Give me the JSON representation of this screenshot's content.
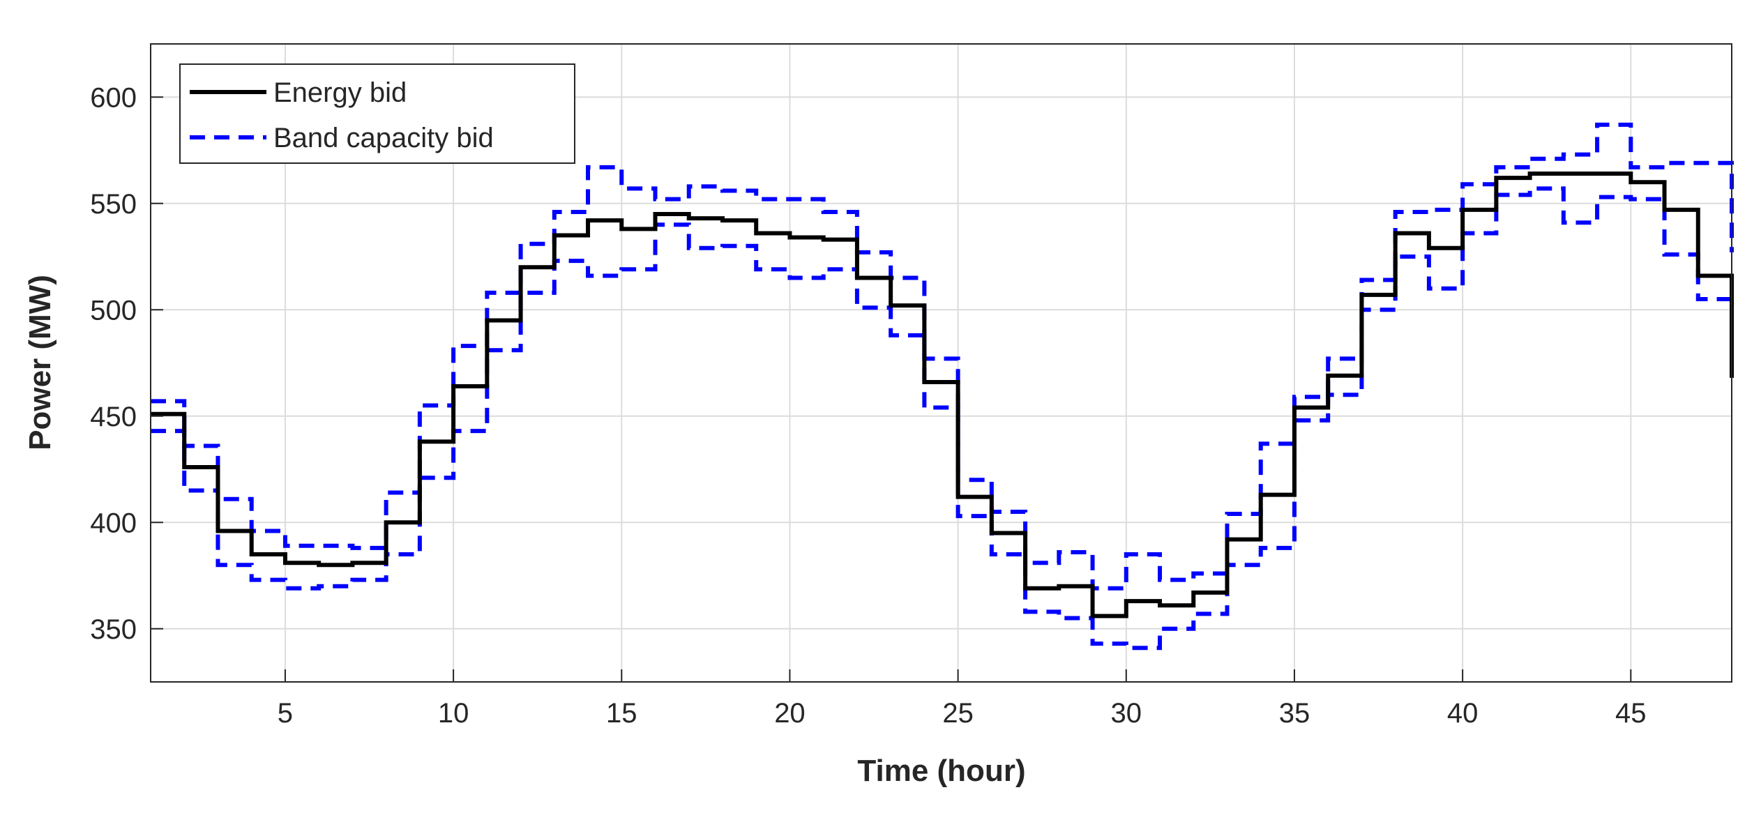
{
  "chart_data": {
    "type": "line",
    "style": "stairs",
    "xlabel": "Time (hour)",
    "ylabel": "Power (MW)",
    "xlim": [
      1,
      48
    ],
    "ylim": [
      325,
      625
    ],
    "xticks": [
      5,
      10,
      15,
      20,
      25,
      30,
      35,
      40,
      45
    ],
    "yticks": [
      350,
      400,
      450,
      500,
      550,
      600
    ],
    "grid": true,
    "legend_position": "top-left",
    "x": [
      1,
      2,
      3,
      4,
      5,
      6,
      7,
      8,
      9,
      10,
      11,
      12,
      13,
      14,
      15,
      16,
      17,
      18,
      19,
      20,
      21,
      22,
      23,
      24,
      25,
      26,
      27,
      28,
      29,
      30,
      31,
      32,
      33,
      34,
      35,
      36,
      37,
      38,
      39,
      40,
      41,
      42,
      43,
      44,
      45,
      46,
      47,
      48
    ],
    "series": [
      {
        "name": "Energy bid",
        "color": "#000000",
        "line_style": "solid",
        "values": [
          451,
          426,
          396,
          385,
          381,
          380,
          381,
          400,
          438,
          464,
          495,
          520,
          535,
          542,
          538,
          545,
          543,
          542,
          536,
          534,
          533,
          515,
          502,
          466,
          412,
          395,
          369,
          370,
          356,
          363,
          361,
          367,
          392,
          413,
          454,
          469,
          507,
          536,
          529,
          547,
          562,
          564,
          564,
          564,
          560,
          547,
          516,
          468
        ]
      },
      {
        "name": "Band capacity bid",
        "color": "#0000ff",
        "line_style": "dashed",
        "values": [
          457,
          436,
          411,
          396,
          389,
          389,
          388,
          414,
          455,
          483,
          508,
          531,
          546,
          567,
          557,
          552,
          558,
          556,
          552,
          552,
          546,
          527,
          515,
          477,
          420,
          405,
          381,
          386,
          369,
          385,
          373,
          376,
          404,
          437,
          459,
          477,
          514,
          546,
          547,
          559,
          567,
          571,
          573,
          587,
          567,
          569,
          569,
          527
        ],
        "values_lower": [
          443,
          415,
          380,
          373,
          369,
          370,
          373,
          385,
          421,
          443,
          481,
          508,
          523,
          516,
          519,
          540,
          529,
          530,
          519,
          515,
          519,
          501,
          488,
          454,
          403,
          385,
          358,
          355,
          343,
          341,
          350,
          357,
          380,
          388,
          448,
          460,
          500,
          525,
          510,
          536,
          554,
          557,
          541,
          553,
          552,
          526,
          505,
          468
        ]
      }
    ]
  }
}
